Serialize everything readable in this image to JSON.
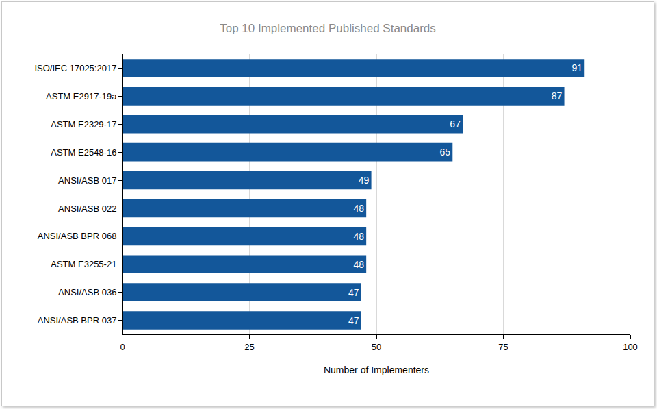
{
  "chart_data": {
    "type": "bar",
    "orientation": "horizontal",
    "title": "Top 10 Implemented Published Standards",
    "x_label": "Number of Implementers",
    "categories": [
      "ISO/IEC 17025:2017",
      "ASTM E2917-19a",
      "ASTM E2329-17",
      "ASTM E2548-16",
      "ANSI/ASB 017",
      "ANSI/ASB 022",
      "ANSI/ASB BPR 068",
      "ASTM E3255-21",
      "ANSI/ASB 036",
      "ANSI/ASB BPR 037"
    ],
    "values": [
      91,
      87,
      67,
      65,
      49,
      48,
      48,
      48,
      47,
      47
    ],
    "color": "#13579a",
    "xlim": [
      0,
      100
    ],
    "xticks": [
      0,
      25,
      50,
      75,
      100
    ],
    "grid": true,
    "data_labels": true
  }
}
